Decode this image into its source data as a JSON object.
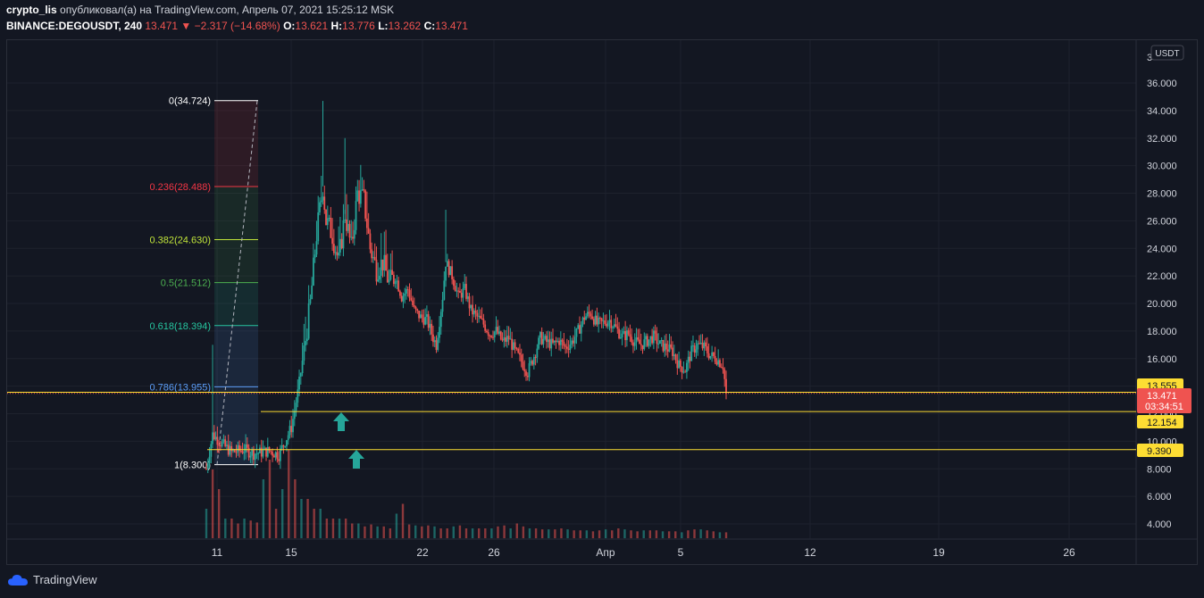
{
  "header": {
    "author": "crypto_lis",
    "published": "опубликовал(а) на TradingView.com, Апрель 07, 2021 15:25:12 MSK",
    "symbol": "BINANCE:DEGOUSDT, 240",
    "last": "13.471",
    "change": "−2.317 (−14.68%)",
    "o_label": "O:",
    "o_value": "13.621",
    "h_label": "H:",
    "h_value": "13.776",
    "l_label": "L:",
    "l_value": "13.262",
    "c_label": "C:",
    "c_value": "13.471"
  },
  "footer": {
    "brand": "TradingView"
  },
  "chart_data": {
    "type": "candlestick",
    "currency_badge": "USDT",
    "y_ticks": [
      4,
      6,
      8,
      10,
      12,
      14,
      16,
      18,
      20,
      22,
      24,
      26,
      28,
      30,
      32,
      34,
      36
    ],
    "y_tick_labels": [
      "4.000",
      "6.000",
      "8.000",
      "10.000",
      "12.000",
      "14.000",
      "16.000",
      "18.000",
      "20.000",
      "22.000",
      "24.000",
      "26.000",
      "28.000",
      "30.000",
      "32.000",
      "34.000",
      "36.000"
    ],
    "y_top_label": "3",
    "x_ticks": [
      "11",
      "15",
      "22",
      "26",
      "Апр",
      "5",
      "12",
      "19",
      "26"
    ],
    "fib_levels": [
      {
        "label": "0(34.724)",
        "value": 34.724,
        "color": "#ffffff"
      },
      {
        "label": "0.236(28.488)",
        "value": 28.488,
        "color": "#f23645"
      },
      {
        "label": "0.382(24.630)",
        "value": 24.63,
        "color": "#c0e43a"
      },
      {
        "label": "0.5(21.512)",
        "value": 21.512,
        "color": "#4caf50"
      },
      {
        "label": "0.618(18.394)",
        "value": 18.394,
        "color": "#26c6a0"
      },
      {
        "label": "0.786(13.955)",
        "value": 13.955,
        "color": "#5b9cf6"
      },
      {
        "label": "1(8.300)",
        "value": 8.3,
        "color": "#ffffff"
      }
    ],
    "price_tags": [
      {
        "label": "13.555",
        "value": 13.555,
        "bg": "#fddd33",
        "fg": "#131722"
      },
      {
        "label": "13.471",
        "value": 13.471,
        "bg": "#ef5350",
        "fg": "#ffffff",
        "sub": "03:34:51"
      },
      {
        "label": "12.154",
        "value": 12.154,
        "bg": "#fddd33",
        "fg": "#131722"
      },
      {
        "label": "9.390",
        "value": 9.39,
        "bg": "#fddd33",
        "fg": "#131722"
      }
    ],
    "horizontal_lines": [
      13.555,
      12.154,
      9.39
    ],
    "last_price": 13.471,
    "arrows": [
      "up",
      "up"
    ],
    "colors": {
      "up": "#26a69a",
      "down": "#ef5350",
      "background": "#131722"
    },
    "price_path": [
      [
        0,
        8.0
      ],
      [
        4,
        10.5
      ],
      [
        10,
        9.8
      ],
      [
        16,
        9.2
      ],
      [
        24,
        9.4
      ],
      [
        30,
        9.1
      ],
      [
        40,
        9.3
      ],
      [
        46,
        9.0
      ],
      [
        54,
        11.0
      ],
      [
        58,
        13.5
      ],
      [
        62,
        16.5
      ],
      [
        66,
        20.0
      ],
      [
        70,
        25.0
      ],
      [
        74,
        28.5
      ],
      [
        76,
        26.0
      ],
      [
        80,
        25.0
      ],
      [
        84,
        23.0
      ],
      [
        88,
        26.5
      ],
      [
        92,
        24.0
      ],
      [
        96,
        28.0
      ],
      [
        100,
        27.5
      ],
      [
        104,
        24.0
      ],
      [
        108,
        22.5
      ],
      [
        112,
        23.0
      ],
      [
        116,
        21.5
      ],
      [
        120,
        22.0
      ],
      [
        124,
        20.5
      ],
      [
        128,
        21.0
      ],
      [
        132,
        19.5
      ],
      [
        136,
        19.0
      ],
      [
        140,
        18.8
      ],
      [
        144,
        17.5
      ],
      [
        146,
        17.0
      ],
      [
        150,
        20.5
      ],
      [
        152,
        23.0
      ],
      [
        156,
        22.0
      ],
      [
        160,
        20.5
      ],
      [
        164,
        21.0
      ],
      [
        168,
        19.5
      ],
      [
        172,
        19.0
      ],
      [
        176,
        18.5
      ],
      [
        180,
        17.8
      ],
      [
        184,
        18.0
      ],
      [
        188,
        17.2
      ],
      [
        192,
        17.5
      ],
      [
        196,
        16.5
      ],
      [
        200,
        15.8
      ],
      [
        204,
        15.0
      ],
      [
        208,
        16.2
      ],
      [
        212,
        17.5
      ],
      [
        216,
        17.2
      ],
      [
        220,
        17.0
      ],
      [
        224,
        17.3
      ],
      [
        228,
        16.8
      ],
      [
        232,
        17.2
      ],
      [
        236,
        18.0
      ],
      [
        240,
        19.0
      ],
      [
        244,
        19.3
      ],
      [
        248,
        18.5
      ],
      [
        252,
        18.6
      ],
      [
        256,
        18.8
      ],
      [
        260,
        18.2
      ],
      [
        264,
        17.6
      ],
      [
        268,
        17.8
      ],
      [
        272,
        17.2
      ],
      [
        276,
        17.0
      ],
      [
        280,
        17.3
      ],
      [
        284,
        17.6
      ],
      [
        288,
        17.0
      ],
      [
        292,
        16.8
      ],
      [
        296,
        16.5
      ],
      [
        300,
        15.5
      ],
      [
        304,
        15.2
      ],
      [
        308,
        16.5
      ],
      [
        312,
        17.0
      ],
      [
        316,
        16.8
      ],
      [
        320,
        16.2
      ],
      [
        324,
        16.0
      ],
      [
        328,
        15.5
      ],
      [
        330,
        13.5
      ]
    ],
    "volume_path": [
      3,
      7,
      5,
      2,
      2,
      1.5,
      2,
      1.8,
      1.6,
      6,
      8,
      3,
      5,
      9,
      6,
      4,
      4,
      3,
      3,
      2,
      2,
      2,
      2,
      1.5,
      1.5,
      1.2,
      1.4,
      1.2,
      1.2,
      1.0,
      2.5,
      3.5,
      1.4,
      1.3,
      1.2,
      1.3,
      1.2,
      1.0,
      1.0,
      1.2,
      1.3,
      1.0,
      1.0,
      1.0,
      1.0,
      1.0,
      1.2,
      1.3,
      1.0,
      1.5,
      1.2,
      1.0,
      1.0,
      0.9,
      0.9,
      0.9,
      1.0,
      0.9,
      0.8,
      0.8,
      0.8,
      0.7,
      0.8,
      0.9,
      0.8,
      1.0,
      0.9,
      0.8,
      0.7,
      0.8,
      0.8,
      0.8,
      0.7,
      0.7,
      0.7,
      0.6,
      0.8,
      0.9,
      0.9,
      0.8,
      0.7,
      0.6,
      0.6
    ]
  }
}
